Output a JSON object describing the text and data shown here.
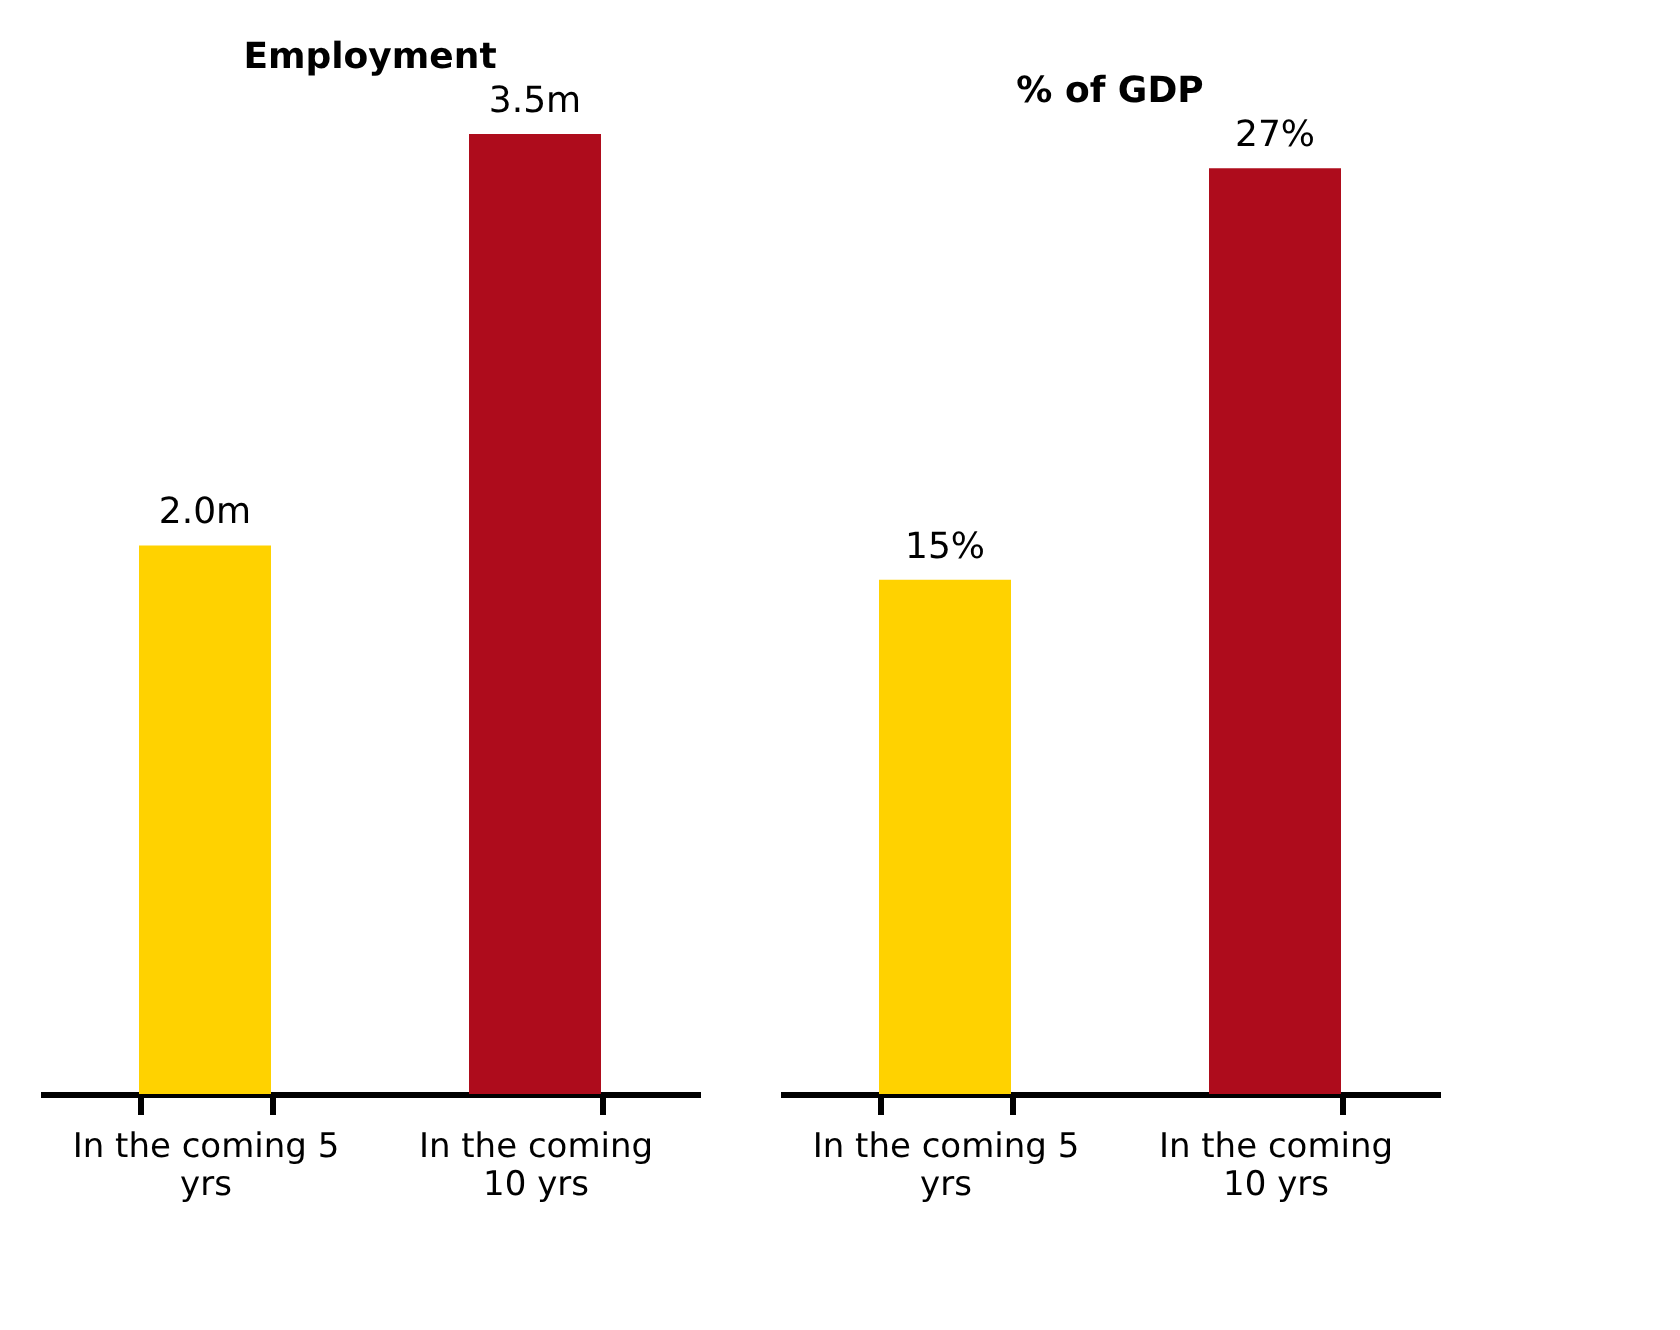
{
  "chart_data": [
    {
      "type": "bar",
      "title": "Employment",
      "categories": [
        "In the coming 5 yrs",
        "In the coming 10 yrs"
      ],
      "values": [
        2.0,
        3.5
      ],
      "colors": [
        "#ffd200",
        "#ae0c1c"
      ],
      "value_labels": [
        "2.0m",
        "3.5m"
      ],
      "tick_labels": "x",
      "grid": false
    },
    {
      "type": "bar",
      "title": "% of GDP",
      "categories": [
        "In the coming 5 yrs",
        "In the coming 10 yrs"
      ],
      "values": [
        15,
        27
      ],
      "colors": [
        "#ffd200",
        "#ae0c1c"
      ],
      "value_labels": [
        "15%",
        "27%"
      ],
      "tick_labels": "x",
      "grid": false
    }
  ]
}
